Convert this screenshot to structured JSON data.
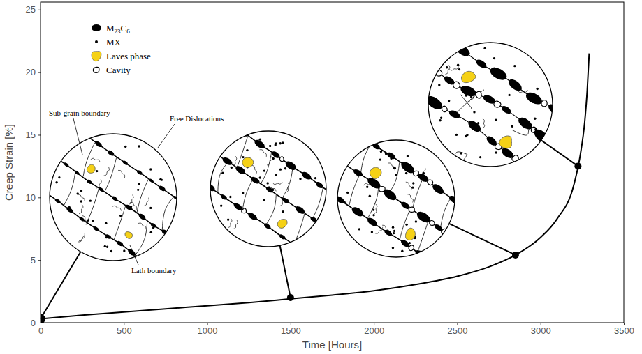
{
  "chart_data": {
    "type": "line",
    "x_label": "Time [Hours]",
    "y_label": "Creep Strain [%]",
    "xlim": [
      0,
      3500
    ],
    "ylim": [
      0,
      25.6
    ],
    "xticks": [
      0,
      500,
      1000,
      1500,
      2000,
      2500,
      3000,
      3500
    ],
    "yticks": [
      0,
      5,
      10,
      15,
      20,
      25
    ],
    "grid": false,
    "series": [
      {
        "type": "line",
        "color": "#000000",
        "line_style": "solid",
        "x": [
          0,
          250,
          500,
          750,
          1000,
          1250,
          1500,
          1750,
          2000,
          2250,
          2500,
          2700,
          2850,
          3000,
          3100,
          3200,
          3240,
          3265,
          3280,
          3292
        ],
        "values": [
          0.3,
          0.6,
          0.85,
          1.1,
          1.35,
          1.6,
          1.9,
          2.2,
          2.55,
          3.05,
          3.7,
          4.5,
          5.4,
          6.8,
          8.3,
          11.0,
          13.5,
          16.0,
          18.5,
          21.5
        ]
      },
      {
        "type": "scatter",
        "color": "#000000",
        "marker": "circle",
        "x": [
          0,
          1500,
          2850,
          3225
        ],
        "values": [
          0.3,
          2.0,
          5.4,
          12.5
        ]
      }
    ],
    "schematic_key": [
      {
        "label": "M23C6",
        "shape": "ellipse",
        "color": "#000000"
      },
      {
        "label": "MX",
        "shape": "dot",
        "color": "#000000"
      },
      {
        "label": "Laves phase",
        "shape": "blob",
        "color": "#f5d116"
      },
      {
        "label": "Cavity",
        "shape": "ring",
        "color": "#000000"
      }
    ],
    "annotations": [
      "Sub-grain boundary",
      "Free Dislocations",
      "Lath boundary"
    ]
  }
}
